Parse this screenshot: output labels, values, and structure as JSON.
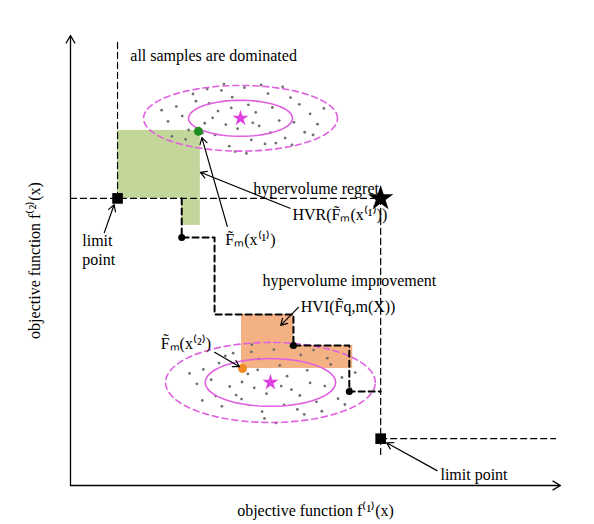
{
  "chart_data": {
    "type": "scatter",
    "xlabel": "objective function f⁽¹⁾(x)",
    "ylabel": "objective function f⁽²⁾(x)",
    "xlim": [
      0,
      100
    ],
    "ylim": [
      0,
      100
    ],
    "xticks": [],
    "yticks": [],
    "tick_labels": false,
    "grid": false,
    "clouds": [
      {
        "color": "#707070",
        "mean": [
          34.7,
          81.6
        ],
        "mean_color": "#e040e0",
        "ellipse_color": "#e060e0",
        "ellipses": [
          {
            "rx": 10.6,
            "ry": 4.0,
            "line_style": "solid"
          },
          {
            "rx": 19.8,
            "ry": 7.3,
            "line_style": "dashed"
          }
        ],
        "points": [
          [
            34.7,
            81.6
          ],
          [
            30.1,
            83.2
          ],
          [
            38.5,
            79.9
          ],
          [
            27.4,
            80.5
          ],
          [
            41.2,
            84.0
          ],
          [
            22.8,
            82.1
          ],
          [
            45.6,
            80.7
          ],
          [
            33.0,
            86.3
          ],
          [
            36.9,
            76.8
          ],
          [
            29.5,
            77.9
          ],
          [
            40.3,
            87.1
          ],
          [
            25.6,
            85.4
          ],
          [
            43.8,
            77.2
          ],
          [
            31.7,
            80.2
          ],
          [
            37.8,
            82.9
          ],
          [
            19.9,
            80.9
          ],
          [
            48.9,
            82.6
          ],
          [
            35.5,
            88.4
          ],
          [
            32.4,
            75.4
          ],
          [
            26.9,
            78.3
          ],
          [
            42.6,
            81.1
          ],
          [
            24.1,
            79.0
          ],
          [
            46.7,
            84.7
          ],
          [
            28.3,
            84.9
          ],
          [
            39.7,
            75.9
          ],
          [
            21.6,
            84.2
          ],
          [
            50.4,
            80.3
          ],
          [
            34.1,
            79.3
          ],
          [
            36.3,
            84.6
          ],
          [
            30.8,
            87.8
          ],
          [
            44.9,
            86.2
          ],
          [
            23.5,
            76.9
          ],
          [
            47.8,
            78.5
          ],
          [
            27.9,
            88.1
          ],
          [
            41.9,
            76.1
          ],
          [
            33.6,
            74.2
          ],
          [
            38.9,
            89.0
          ],
          [
            18.6,
            83.4
          ],
          [
            51.7,
            83.8
          ],
          [
            29.0,
            81.7
          ],
          [
            40.8,
            78.4
          ],
          [
            25.0,
            87.0
          ],
          [
            45.2,
            75.7
          ],
          [
            32.8,
            83.9
          ],
          [
            37.2,
            80.6
          ],
          [
            20.7,
            77.6
          ],
          [
            49.5,
            77.9
          ],
          [
            35.9,
            73.8
          ],
          [
            31.3,
            89.2
          ],
          [
            43.3,
            88.6
          ]
        ]
      },
      {
        "color": "#707070",
        "mean": [
          40.8,
          22.9
        ],
        "mean_color": "#e040e0",
        "ellipse_color": "#e060e0",
        "ellipses": [
          {
            "rx": 13.3,
            "ry": 5.3,
            "line_style": "solid"
          },
          {
            "rx": 21.4,
            "ry": 8.9,
            "line_style": "dashed"
          }
        ],
        "points": [
          [
            40.8,
            22.9
          ],
          [
            36.2,
            24.8
          ],
          [
            45.1,
            21.3
          ],
          [
            32.5,
            22.0
          ],
          [
            48.3,
            25.6
          ],
          [
            28.7,
            23.5
          ],
          [
            51.9,
            22.1
          ],
          [
            38.4,
            28.1
          ],
          [
            43.6,
            17.9
          ],
          [
            34.9,
            19.2
          ],
          [
            47.0,
            29.0
          ],
          [
            30.3,
            27.2
          ],
          [
            50.2,
            18.6
          ],
          [
            37.5,
            21.7
          ],
          [
            44.2,
            24.3
          ],
          [
            25.8,
            22.6
          ],
          [
            55.4,
            24.0
          ],
          [
            41.5,
            30.2
          ],
          [
            39.1,
            16.4
          ],
          [
            33.8,
            20.1
          ],
          [
            48.9,
            22.8
          ],
          [
            29.6,
            19.9
          ],
          [
            53.1,
            26.9
          ],
          [
            35.4,
            26.5
          ],
          [
            46.3,
            16.9
          ],
          [
            27.1,
            25.8
          ],
          [
            57.2,
            21.5
          ],
          [
            40.0,
            20.4
          ],
          [
            42.7,
            26.7
          ],
          [
            36.9,
            29.7
          ],
          [
            52.4,
            28.3
          ],
          [
            30.9,
            17.6
          ],
          [
            54.6,
            19.3
          ],
          [
            33.2,
            29.4
          ],
          [
            47.7,
            15.8
          ],
          [
            39.6,
            14.9
          ],
          [
            44.9,
            31.0
          ],
          [
            24.3,
            24.9
          ],
          [
            58.1,
            25.1
          ],
          [
            35.0,
            23.0
          ],
          [
            46.8,
            20.0
          ],
          [
            31.6,
            28.8
          ],
          [
            51.3,
            16.5
          ],
          [
            38.2,
            25.7
          ],
          [
            43.0,
            22.1
          ],
          [
            26.9,
            18.9
          ],
          [
            56.0,
            18.0
          ],
          [
            41.9,
            13.9
          ],
          [
            37.0,
            31.3
          ],
          [
            49.6,
            30.1
          ]
        ]
      }
    ],
    "regions": [
      {
        "color": "#c4d79b",
        "rects": [
          [
            9.6,
            63.8,
            26.5,
            78.9
          ],
          [
            22.7,
            57.8,
            26.5,
            63.8
          ]
        ]
      },
      {
        "color": "#f4b183",
        "rects": [
          [
            34.9,
            31.1,
            45.5,
            38.0
          ],
          [
            34.9,
            26.0,
            57.6,
            31.1
          ]
        ]
      }
    ],
    "guide_lines": [
      {
        "line_style": "dashed",
        "color": "#000000",
        "points": [
          [
            9.6,
            63.8
          ],
          [
            9.6,
            98.9
          ]
        ]
      },
      {
        "line_style": "dashed",
        "color": "#000000",
        "points": [
          [
            0,
            63.8
          ],
          [
            63.3,
            63.8
          ]
        ]
      },
      {
        "line_style": "dashed",
        "color": "#000000",
        "points": [
          [
            63.3,
            63.8
          ],
          [
            63.3,
            6.7
          ]
        ]
      },
      {
        "line_style": "dashed",
        "color": "#000000",
        "points": [
          [
            63.3,
            10.4
          ],
          [
            99,
            10.4
          ]
        ]
      }
    ],
    "front": {
      "line_style": "dashed",
      "color": "#000000",
      "points": [
        [
          22.7,
          63.8
        ],
        [
          22.7,
          55.1
        ],
        [
          29.4,
          55.1
        ],
        [
          29.4,
          38.0
        ],
        [
          45.5,
          38.0
        ],
        [
          45.5,
          31.1
        ],
        [
          56.9,
          31.1
        ],
        [
          56.9,
          20.9
        ],
        [
          63.3,
          20.9
        ]
      ],
      "markers": [
        [
          22.7,
          55.1
        ],
        [
          45.5,
          31.1
        ],
        [
          56.9,
          20.9
        ]
      ]
    },
    "reference_point": [
      63.3,
      63.8
    ],
    "limit_points": [
      [
        9.6,
        63.8
      ],
      [
        63.3,
        10.4
      ]
    ],
    "selected_points": [
      {
        "x": 26.1,
        "y": 78.7,
        "color": "#1e8c1e"
      },
      {
        "x": 35.1,
        "y": 26.0,
        "color": "#f08a24"
      }
    ],
    "annotations": [
      {
        "text": [
          "all samples are dominated"
        ],
        "x": 12.2,
        "y": 95.6
      },
      {
        "text": [
          "hypervolume regret"
        ],
        "x": 37.3,
        "y": 66.2
      },
      {
        "text": [
          "HVR(F̃ₘ(x⁽¹⁾))"
        ],
        "x": 45.3,
        "y": 60.4,
        "arrow_from": [
          44.8,
          61.6
        ],
        "arrow_to": [
          26.5,
          69.6
        ]
      },
      {
        "text": [
          "F̃ₘ(x⁽¹⁾)"
        ],
        "x": 31.6,
        "y": 54.8,
        "arrow_from": [
          32.0,
          57.6
        ],
        "arrow_to": [
          26.8,
          77.3
        ]
      },
      {
        "text": [
          "limit",
          "point"
        ],
        "x": 2.4,
        "y": 52.5,
        "arrow_from": [
          6.9,
          56.2
        ],
        "arrow_to": [
          8.9,
          62.4
        ]
      },
      {
        "text": [
          "hypervolume improvement"
        ],
        "x": 39.2,
        "y": 45.6
      },
      {
        "text": [
          "HVI(F̃q,m(X))"
        ],
        "x": 47.0,
        "y": 40.0,
        "arrow_from": [
          46.5,
          39.6
        ],
        "arrow_to": [
          42.9,
          35.6
        ]
      },
      {
        "text": [
          "F̃ₘ(x⁽²⁾)"
        ],
        "x": 18.4,
        "y": 31.8,
        "arrow_from": [
          29.4,
          29.6
        ],
        "arrow_to": [
          34.5,
          26.4
        ]
      },
      {
        "text": [
          "limit point"
        ],
        "x": 75.5,
        "y": 2.7,
        "arrow_from": [
          74.8,
          3.3
        ],
        "arrow_to": [
          64.5,
          9.5
        ]
      }
    ]
  }
}
